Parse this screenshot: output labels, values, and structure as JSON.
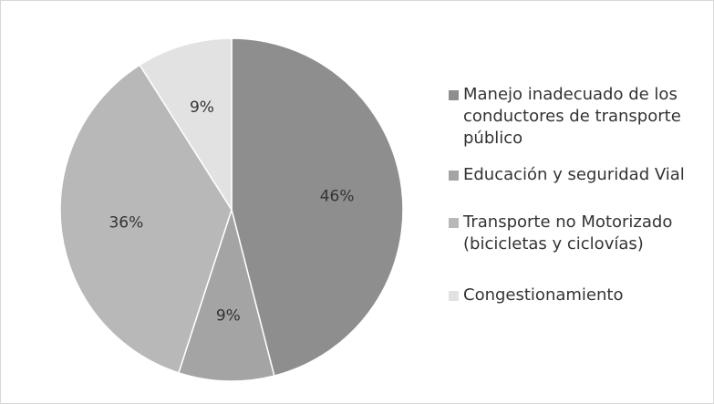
{
  "chart_data": {
    "type": "pie",
    "categories": [
      "Manejo inadecuado de los conductores de transporte público",
      "Educación y seguridad Vial",
      "Transporte no Motorizado (bicicletas y ciclovías)",
      "Congestionamiento"
    ],
    "values": [
      46,
      9,
      36,
      9
    ],
    "value_labels": [
      "46%",
      "9%",
      "36%",
      "9%"
    ],
    "colors": [
      "#8e8e8e",
      "#a4a4a4",
      "#b8b8b8",
      "#e2e2e2"
    ]
  }
}
